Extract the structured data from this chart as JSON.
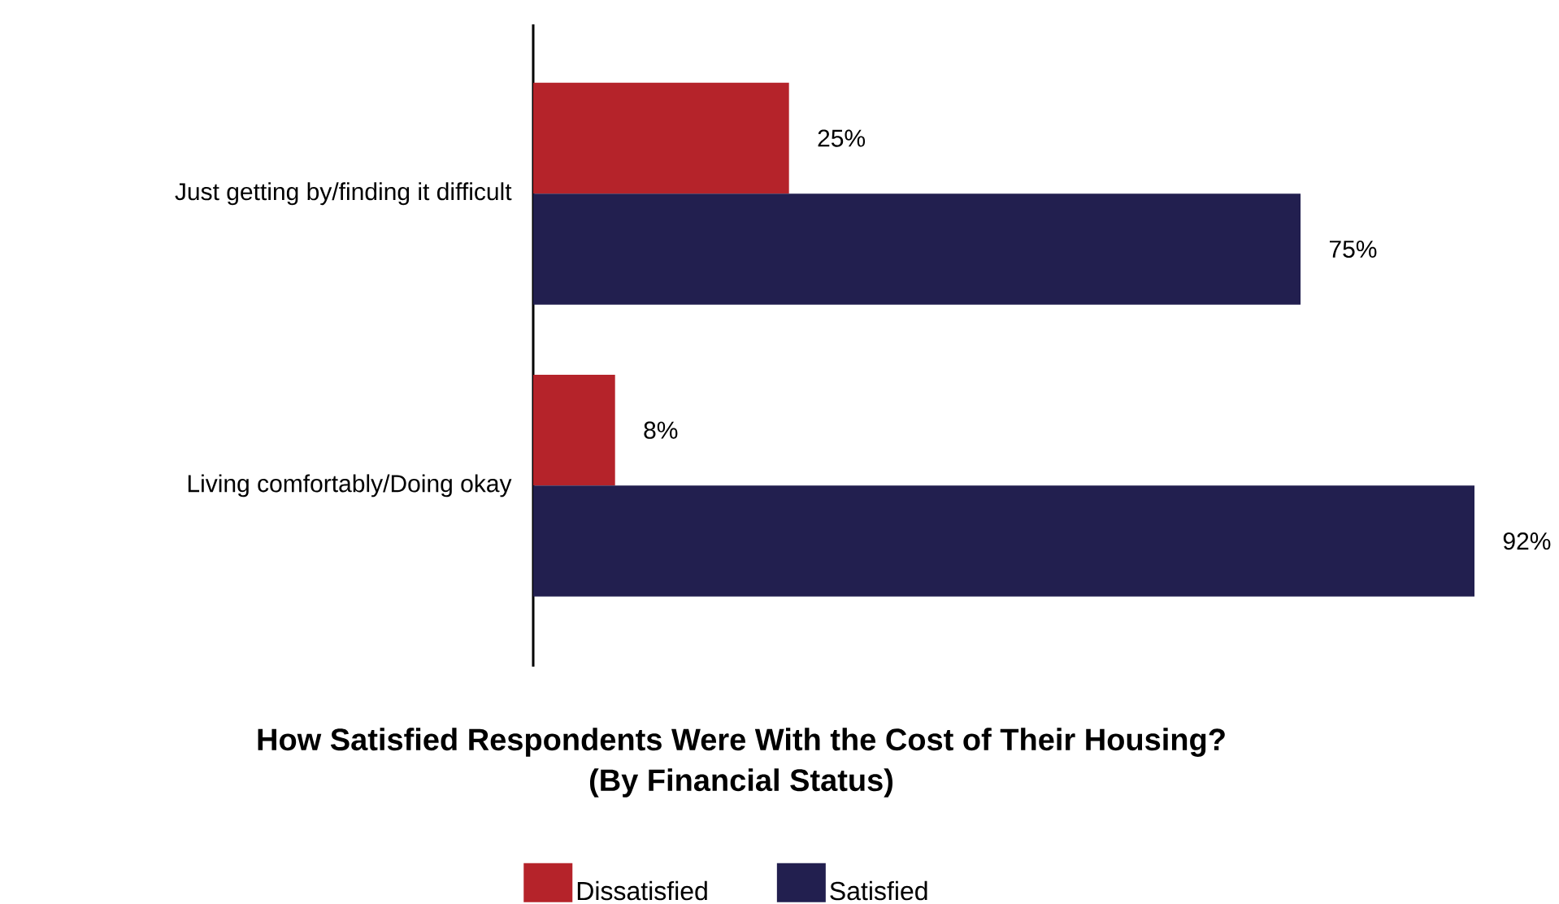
{
  "chart_data": {
    "type": "bar",
    "orientation": "horizontal",
    "title": "How Satisfied Respondents Were With the Cost of Their Housing?",
    "subtitle": "(By Financial Status)",
    "categories": [
      "Just getting by/finding it difficult",
      "Living comfortably/Doing okay"
    ],
    "series": [
      {
        "name": "Dissatisfied",
        "color": "#b5232a",
        "values": [
          25,
          8
        ],
        "value_labels": [
          "25%",
          "8%"
        ]
      },
      {
        "name": "Satisfied",
        "color": "#221f4f",
        "values": [
          75,
          92
        ],
        "value_labels": [
          "75%",
          "92%"
        ]
      }
    ],
    "legend": "bottom"
  }
}
